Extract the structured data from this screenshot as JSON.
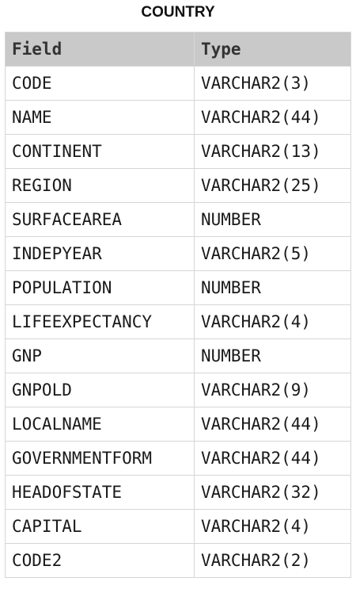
{
  "title": "COUNTRY",
  "columns": {
    "field": "Field",
    "type": "Type"
  },
  "rows": [
    {
      "field": "CODE",
      "type": "VARCHAR2(3)"
    },
    {
      "field": "NAME",
      "type": "VARCHAR2(44)"
    },
    {
      "field": "CONTINENT",
      "type": "VARCHAR2(13)"
    },
    {
      "field": "REGION",
      "type": "VARCHAR2(25)"
    },
    {
      "field": "SURFACEAREA",
      "type": "NUMBER"
    },
    {
      "field": "INDEPYEAR",
      "type": "VARCHAR2(5)"
    },
    {
      "field": "POPULATION",
      "type": "NUMBER"
    },
    {
      "field": "LIFEEXPECTANCY",
      "type": "VARCHAR2(4)"
    },
    {
      "field": "GNP",
      "type": "NUMBER"
    },
    {
      "field": "GNPOLD",
      "type": "VARCHAR2(9)"
    },
    {
      "field": "LOCALNAME",
      "type": "VARCHAR2(44)"
    },
    {
      "field": "GOVERNMENTFORM",
      "type": "VARCHAR2(44)"
    },
    {
      "field": "HEADOFSTATE",
      "type": "VARCHAR2(32)"
    },
    {
      "field": "CAPITAL",
      "type": "VARCHAR2(4)"
    },
    {
      "field": "CODE2",
      "type": "VARCHAR2(2)"
    }
  ]
}
